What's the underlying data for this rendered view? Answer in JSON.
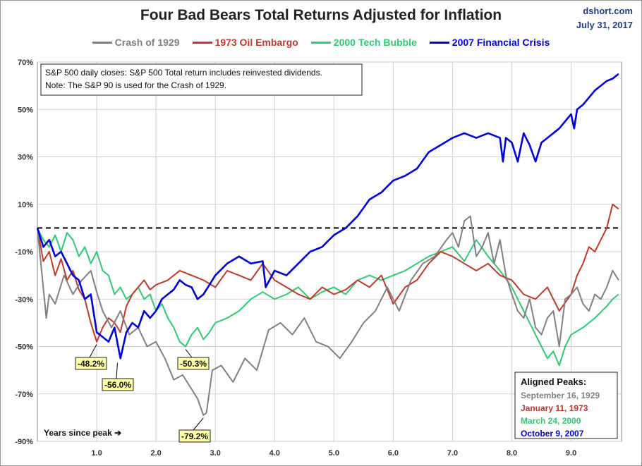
{
  "source": {
    "site": "dshort.com",
    "date": "July 31, 2017"
  },
  "chart_data": {
    "type": "line",
    "title": "Four Bad Bears Total Returns Adjusted for Inflation",
    "xlabel": "Years since peak ➔",
    "ylabel": "",
    "xlim": [
      0,
      9.85
    ],
    "ylim": [
      -90,
      70
    ],
    "x_ticks": [
      1,
      2,
      3,
      4,
      5,
      6,
      7,
      8,
      9
    ],
    "x_tick_labels": [
      "1.0",
      "2.0",
      "3.0",
      "4.0",
      "5.0",
      "6.0",
      "7.0",
      "8.0",
      "9.0"
    ],
    "y_ticks": [
      70,
      50,
      30,
      10,
      -10,
      -30,
      -50,
      -70,
      -90
    ],
    "y_tick_labels": [
      "70%",
      "50%",
      "30%",
      "10%",
      "-10%",
      "-30%",
      "-50%",
      "-70%",
      "-90%"
    ],
    "grid": true,
    "legend": "top",
    "series": [
      {
        "name": "Crash of 1929",
        "color": "#808080",
        "x": [
          0,
          0.15,
          0.2,
          0.3,
          0.45,
          0.6,
          0.75,
          0.9,
          1.0,
          1.1,
          1.25,
          1.4,
          1.55,
          1.7,
          1.85,
          2.0,
          2.15,
          2.3,
          2.45,
          2.6,
          2.7,
          2.8,
          2.85,
          2.95,
          3.1,
          3.3,
          3.5,
          3.7,
          3.9,
          4.1,
          4.3,
          4.5,
          4.7,
          4.9,
          5.1,
          5.3,
          5.5,
          5.7,
          5.9,
          6.1,
          6.3,
          6.5,
          6.7,
          6.9,
          7.0,
          7.1,
          7.2,
          7.3,
          7.4,
          7.5,
          7.6,
          7.7,
          7.8,
          7.9,
          8.0,
          8.1,
          8.2,
          8.3,
          8.4,
          8.5,
          8.6,
          8.7,
          8.8,
          8.9,
          9.0,
          9.1,
          9.2,
          9.3,
          9.4,
          9.5,
          9.6,
          9.7,
          9.8
        ],
        "values": [
          0,
          -38,
          -28,
          -32,
          -20,
          -28,
          -22,
          -18,
          -27,
          -35,
          -42,
          -35,
          -45,
          -42,
          -50,
          -48,
          -55,
          -64,
          -62,
          -68,
          -72,
          -79,
          -78,
          -60,
          -58,
          -65,
          -55,
          -60,
          -43,
          -40,
          -45,
          -38,
          -48,
          -50,
          -55,
          -48,
          -40,
          -35,
          -25,
          -35,
          -22,
          -15,
          -12,
          -5,
          -2,
          -8,
          3,
          5,
          -12,
          -8,
          -2,
          -15,
          -5,
          -20,
          -28,
          -35,
          -38,
          -30,
          -42,
          -45,
          -38,
          -35,
          -50,
          -30,
          -28,
          -25,
          -32,
          -35,
          -28,
          -30,
          -25,
          -18,
          -22
        ]
      },
      {
        "name": "1973 Oil Embargo",
        "color": "#c0392b",
        "x": [
          0,
          0.1,
          0.2,
          0.3,
          0.4,
          0.5,
          0.6,
          0.7,
          0.8,
          0.9,
          1.0,
          1.1,
          1.2,
          1.3,
          1.4,
          1.5,
          1.6,
          1.7,
          1.8,
          1.9,
          2.0,
          2.2,
          2.4,
          2.6,
          2.8,
          3.0,
          3.2,
          3.4,
          3.6,
          3.8,
          4.0,
          4.2,
          4.4,
          4.6,
          4.8,
          5.0,
          5.2,
          5.4,
          5.6,
          5.8,
          6.0,
          6.2,
          6.4,
          6.6,
          6.8,
          7.0,
          7.2,
          7.4,
          7.6,
          7.8,
          8.0,
          8.2,
          8.4,
          8.6,
          8.8,
          9.0,
          9.1,
          9.2,
          9.3,
          9.4,
          9.5,
          9.6,
          9.7,
          9.8
        ],
        "values": [
          0,
          -14,
          -10,
          -20,
          -13,
          -22,
          -18,
          -26,
          -30,
          -40,
          -48,
          -42,
          -38,
          -40,
          -44,
          -33,
          -28,
          -25,
          -22,
          -26,
          -24,
          -22,
          -18,
          -20,
          -22,
          -25,
          -18,
          -20,
          -22,
          -15,
          -22,
          -25,
          -28,
          -30,
          -25,
          -28,
          -26,
          -22,
          -25,
          -20,
          -32,
          -25,
          -22,
          -15,
          -10,
          -12,
          -15,
          -18,
          -15,
          -20,
          -22,
          -28,
          -30,
          -25,
          -35,
          -28,
          -20,
          -15,
          -8,
          -10,
          -5,
          0,
          10,
          8
        ]
      },
      {
        "name": "2000 Tech Bubble",
        "color": "#2ecc71",
        "x": [
          0,
          0.1,
          0.2,
          0.3,
          0.4,
          0.5,
          0.6,
          0.7,
          0.8,
          0.9,
          1.0,
          1.1,
          1.2,
          1.3,
          1.4,
          1.5,
          1.6,
          1.7,
          1.8,
          1.9,
          2.0,
          2.1,
          2.2,
          2.3,
          2.4,
          2.5,
          2.6,
          2.7,
          2.8,
          2.9,
          3.0,
          3.2,
          3.4,
          3.6,
          3.8,
          4.0,
          4.2,
          4.4,
          4.6,
          4.8,
          5.0,
          5.2,
          5.4,
          5.6,
          5.8,
          6.0,
          6.2,
          6.4,
          6.6,
          6.8,
          7.0,
          7.2,
          7.4,
          7.6,
          7.8,
          8.0,
          8.2,
          8.4,
          8.6,
          8.7,
          8.8,
          8.9,
          9.0,
          9.2,
          9.4,
          9.6,
          9.7,
          9.8
        ],
        "values": [
          0,
          -5,
          -8,
          -3,
          -10,
          -2,
          -5,
          -12,
          -8,
          -15,
          -10,
          -18,
          -20,
          -28,
          -25,
          -30,
          -28,
          -25,
          -30,
          -28,
          -35,
          -32,
          -38,
          -42,
          -48,
          -50,
          -45,
          -42,
          -47,
          -44,
          -40,
          -38,
          -35,
          -30,
          -27,
          -30,
          -28,
          -25,
          -30,
          -27,
          -25,
          -28,
          -22,
          -20,
          -22,
          -20,
          -18,
          -15,
          -12,
          -10,
          -8,
          -14,
          -5,
          -12,
          -18,
          -25,
          -35,
          -45,
          -55,
          -52,
          -58,
          -50,
          -45,
          -42,
          -38,
          -33,
          -30,
          -28
        ]
      },
      {
        "name": "2007 Financial Crisis",
        "color": "#0000e0",
        "x": [
          0,
          0.1,
          0.2,
          0.3,
          0.4,
          0.5,
          0.6,
          0.7,
          0.8,
          0.9,
          1.0,
          1.1,
          1.2,
          1.3,
          1.4,
          1.5,
          1.6,
          1.7,
          1.8,
          1.9,
          2.0,
          2.1,
          2.2,
          2.3,
          2.4,
          2.5,
          2.6,
          2.7,
          2.8,
          2.9,
          3.0,
          3.2,
          3.4,
          3.6,
          3.8,
          3.85,
          4.0,
          4.2,
          4.4,
          4.6,
          4.8,
          5.0,
          5.2,
          5.4,
          5.6,
          5.8,
          6.0,
          6.2,
          6.4,
          6.6,
          6.8,
          7.0,
          7.2,
          7.4,
          7.6,
          7.8,
          7.85,
          7.9,
          8.0,
          8.1,
          8.2,
          8.3,
          8.4,
          8.5,
          8.6,
          8.8,
          9.0,
          9.05,
          9.1,
          9.2,
          9.3,
          9.4,
          9.5,
          9.6,
          9.7,
          9.8
        ],
        "values": [
          0,
          -8,
          -5,
          -12,
          -10,
          -15,
          -20,
          -22,
          -30,
          -28,
          -44,
          -46,
          -48,
          -42,
          -55,
          -44,
          -40,
          -42,
          -35,
          -38,
          -35,
          -30,
          -28,
          -26,
          -22,
          -24,
          -25,
          -30,
          -28,
          -24,
          -20,
          -15,
          -12,
          -15,
          -14,
          -25,
          -18,
          -20,
          -15,
          -10,
          -8,
          -3,
          0,
          5,
          12,
          15,
          20,
          22,
          25,
          32,
          35,
          38,
          40,
          38,
          40,
          38,
          28,
          38,
          36,
          28,
          40,
          35,
          28,
          36,
          38,
          42,
          48,
          42,
          50,
          52,
          55,
          58,
          60,
          62,
          63,
          65
        ]
      }
    ],
    "annotations": {
      "reference_line_value": 0,
      "note_lines": [
        "S&P 500 daily closes: S&P 500 Total return includes reinvested dividends.",
        "Note: The S&P 90 is used for the Crash of 1929."
      ],
      "callouts": [
        {
          "label": "-48.2%",
          "x": 1.0,
          "y": -48.2
        },
        {
          "label": "-56.0%",
          "x": 1.35,
          "y": -56.0
        },
        {
          "label": "-50.3%",
          "x": 2.5,
          "y": -50.3
        },
        {
          "label": "-79.2%",
          "x": 2.8,
          "y": -79.2
        }
      ],
      "peaks_title": "Aligned Peaks:",
      "peaks": [
        {
          "label": "September 16, 1929",
          "color": "#808080"
        },
        {
          "label": "January 11, 1973",
          "color": "#c0392b"
        },
        {
          "label": "March 24, 2000",
          "color": "#2ecc71"
        },
        {
          "label": "October 9, 2007",
          "color": "#0000e0"
        }
      ]
    }
  }
}
